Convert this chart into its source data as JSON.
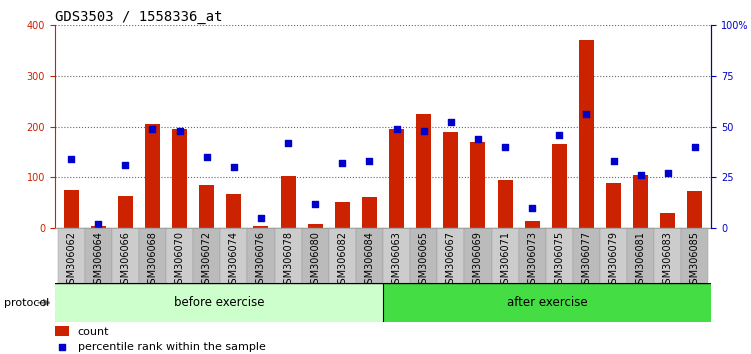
{
  "title": "GDS3503 / 1558336_at",
  "categories": [
    "GSM306062",
    "GSM306064",
    "GSM306066",
    "GSM306068",
    "GSM306070",
    "GSM306072",
    "GSM306074",
    "GSM306076",
    "GSM306078",
    "GSM306080",
    "GSM306082",
    "GSM306084",
    "GSM306063",
    "GSM306065",
    "GSM306067",
    "GSM306069",
    "GSM306071",
    "GSM306073",
    "GSM306075",
    "GSM306077",
    "GSM306079",
    "GSM306081",
    "GSM306083",
    "GSM306085"
  ],
  "counts": [
    75,
    5,
    63,
    205,
    195,
    85,
    68,
    5,
    102,
    8,
    52,
    62,
    195,
    225,
    190,
    170,
    95,
    15,
    165,
    370,
    90,
    105,
    30,
    73
  ],
  "percentile_ranks": [
    34,
    2,
    31,
    49,
    48,
    35,
    30,
    5,
    42,
    12,
    32,
    33,
    49,
    48,
    52,
    44,
    40,
    10,
    46,
    56,
    33,
    26,
    27,
    40
  ],
  "group1_label": "before exercise",
  "group2_label": "after exercise",
  "group1_count": 12,
  "group2_count": 12,
  "bar_color": "#cc2200",
  "dot_color": "#0000cc",
  "left_axis_color": "#cc2200",
  "right_axis_color": "#0000cc",
  "ylim_left": [
    0,
    400
  ],
  "ylim_right": [
    0,
    100
  ],
  "left_yticks": [
    0,
    100,
    200,
    300,
    400
  ],
  "right_yticks": [
    0,
    25,
    50,
    75,
    100
  ],
  "right_yticklabels": [
    "0",
    "25",
    "50",
    "75",
    "100%"
  ],
  "grid_linestyle": ":",
  "grid_color": "#000000",
  "grid_alpha": 0.6,
  "group1_bg": "#ccffcc",
  "group2_bg": "#44dd44",
  "protocol_label": "protocol",
  "legend_count_label": "count",
  "legend_pct_label": "percentile rank within the sample",
  "bar_width": 0.55,
  "title_fontsize": 10,
  "tick_fontsize": 7,
  "axis_label_fontsize": 9,
  "xtick_colors": [
    "#cccccc",
    "#bbbbbb"
  ]
}
